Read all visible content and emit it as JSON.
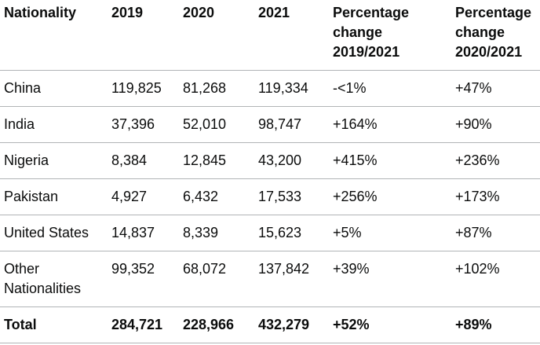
{
  "table": {
    "headers": {
      "nationality": "Nationality",
      "y2019": "2019",
      "y2020": "2020",
      "y2021": "2021",
      "pct_a": [
        "Percentage",
        "change",
        "2019/2021"
      ],
      "pct_b": [
        "Percentage",
        "change",
        "2020/2021"
      ]
    },
    "rows": [
      {
        "nationality": "China",
        "y2019": "119,825",
        "y2020": "81,268",
        "y2021": "119,334",
        "pct_a": "-<1%",
        "pct_b": "+47%"
      },
      {
        "nationality": "India",
        "y2019": "37,396",
        "y2020": "52,010",
        "y2021": "98,747",
        "pct_a": "+164%",
        "pct_b": "+90%"
      },
      {
        "nationality": "Nigeria",
        "y2019": "8,384",
        "y2020": "12,845",
        "y2021": "43,200",
        "pct_a": "+415%",
        "pct_b": "+236%"
      },
      {
        "nationality": "Pakistan",
        "y2019": "4,927",
        "y2020": "6,432",
        "y2021": "17,533",
        "pct_a": "+256%",
        "pct_b": "+173%"
      },
      {
        "nationality": "United States",
        "y2019": "14,837",
        "y2020": "8,339",
        "y2021": "15,623",
        "pct_a": "+5%",
        "pct_b": "+87%"
      },
      {
        "nationality": "Other Nationalities",
        "y2019": "99,352",
        "y2020": "68,072",
        "y2021": "137,842",
        "pct_a": "+39%",
        "pct_b": "+102%"
      }
    ],
    "total": {
      "nationality": "Total",
      "y2019": "284,721",
      "y2020": "228,966",
      "y2021": "432,279",
      "pct_a": "+52%",
      "pct_b": "+89%"
    }
  }
}
